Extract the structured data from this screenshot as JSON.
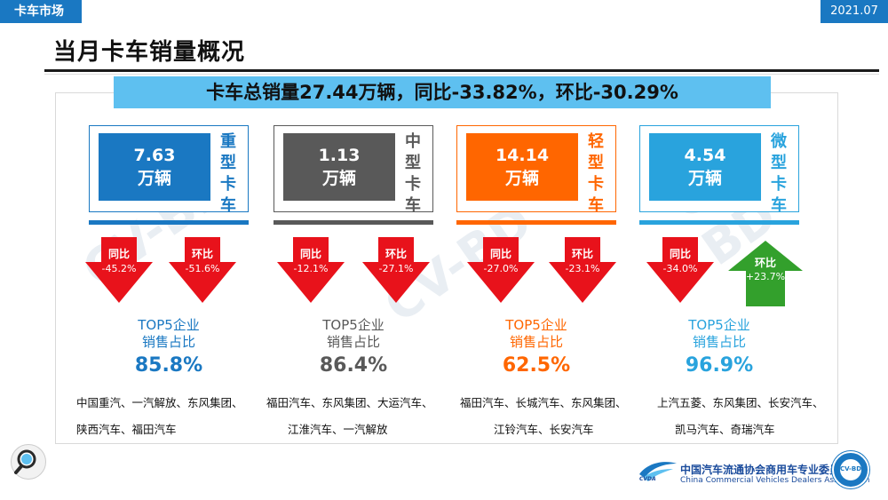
{
  "header": {
    "section_tag": "卡车市场",
    "date": "2021.07"
  },
  "title": "当月卡车销量概况",
  "summary": "卡车总销量27.44万辆，同比-33.82%，环比-30.29%",
  "colors": {
    "blue": "#1a78c2",
    "gray": "#595959",
    "orange": "#ff6600",
    "lightblue": "#29a3dd",
    "red": "#e8121b",
    "green": "#33a02c"
  },
  "segments": [
    {
      "value": "7.63",
      "unit": "万辆",
      "name_chars": [
        "重",
        "型",
        "卡",
        "车"
      ],
      "yoy_label": "同比",
      "yoy": "-45.2%",
      "mom_label": "环比",
      "mom": "-51.6%",
      "top5_line1": "TOP5企业",
      "top5_line2": "销售占比",
      "share": "85.8%",
      "companies_line1": "中国重汽、一汽解放、东风集团、",
      "companies_line2": "陕西汽车、福田汽车"
    },
    {
      "value": "1.13",
      "unit": "万辆",
      "name_chars": [
        "中",
        "型",
        "卡",
        "车"
      ],
      "yoy_label": "同比",
      "yoy": "-12.1%",
      "mom_label": "环比",
      "mom": "-27.1%",
      "top5_line1": "TOP5企业",
      "top5_line2": "销售占比",
      "share": "86.4%",
      "companies_line1": "福田汽车、东风集团、大运汽车、",
      "companies_line2": "江淮汽车、一汽解放"
    },
    {
      "value": "14.14",
      "unit": "万辆",
      "name_chars": [
        "轻",
        "型",
        "卡",
        "车"
      ],
      "yoy_label": "同比",
      "yoy": "-27.0%",
      "mom_label": "环比",
      "mom": "-23.1%",
      "top5_line1": "TOP5企业",
      "top5_line2": "销售占比",
      "share": "62.5%",
      "companies_line1": "福田汽车、长城汽车、东风集团、",
      "companies_line2": "江铃汽车、长安汽车"
    },
    {
      "value": "4.54",
      "unit": "万辆",
      "name_chars": [
        "微",
        "型",
        "卡",
        "车"
      ],
      "yoy_label": "同比",
      "yoy": "-34.0%",
      "mom_label": "环比",
      "mom": "+23.7%",
      "top5_line1": "TOP5企业",
      "top5_line2": "销售占比",
      "share": "96.9%",
      "companies_line1": "上汽五菱、东风集团、长安汽车、",
      "companies_line2": "凯马汽车、奇瑞汽车"
    }
  ],
  "footer": {
    "org_cn": "中国汽车流通协会商用车专业委员会",
    "org_en": "China Commercial Vehicles Dealers Association",
    "logo_text": "CVDA",
    "badge_text": "CV-BD"
  }
}
